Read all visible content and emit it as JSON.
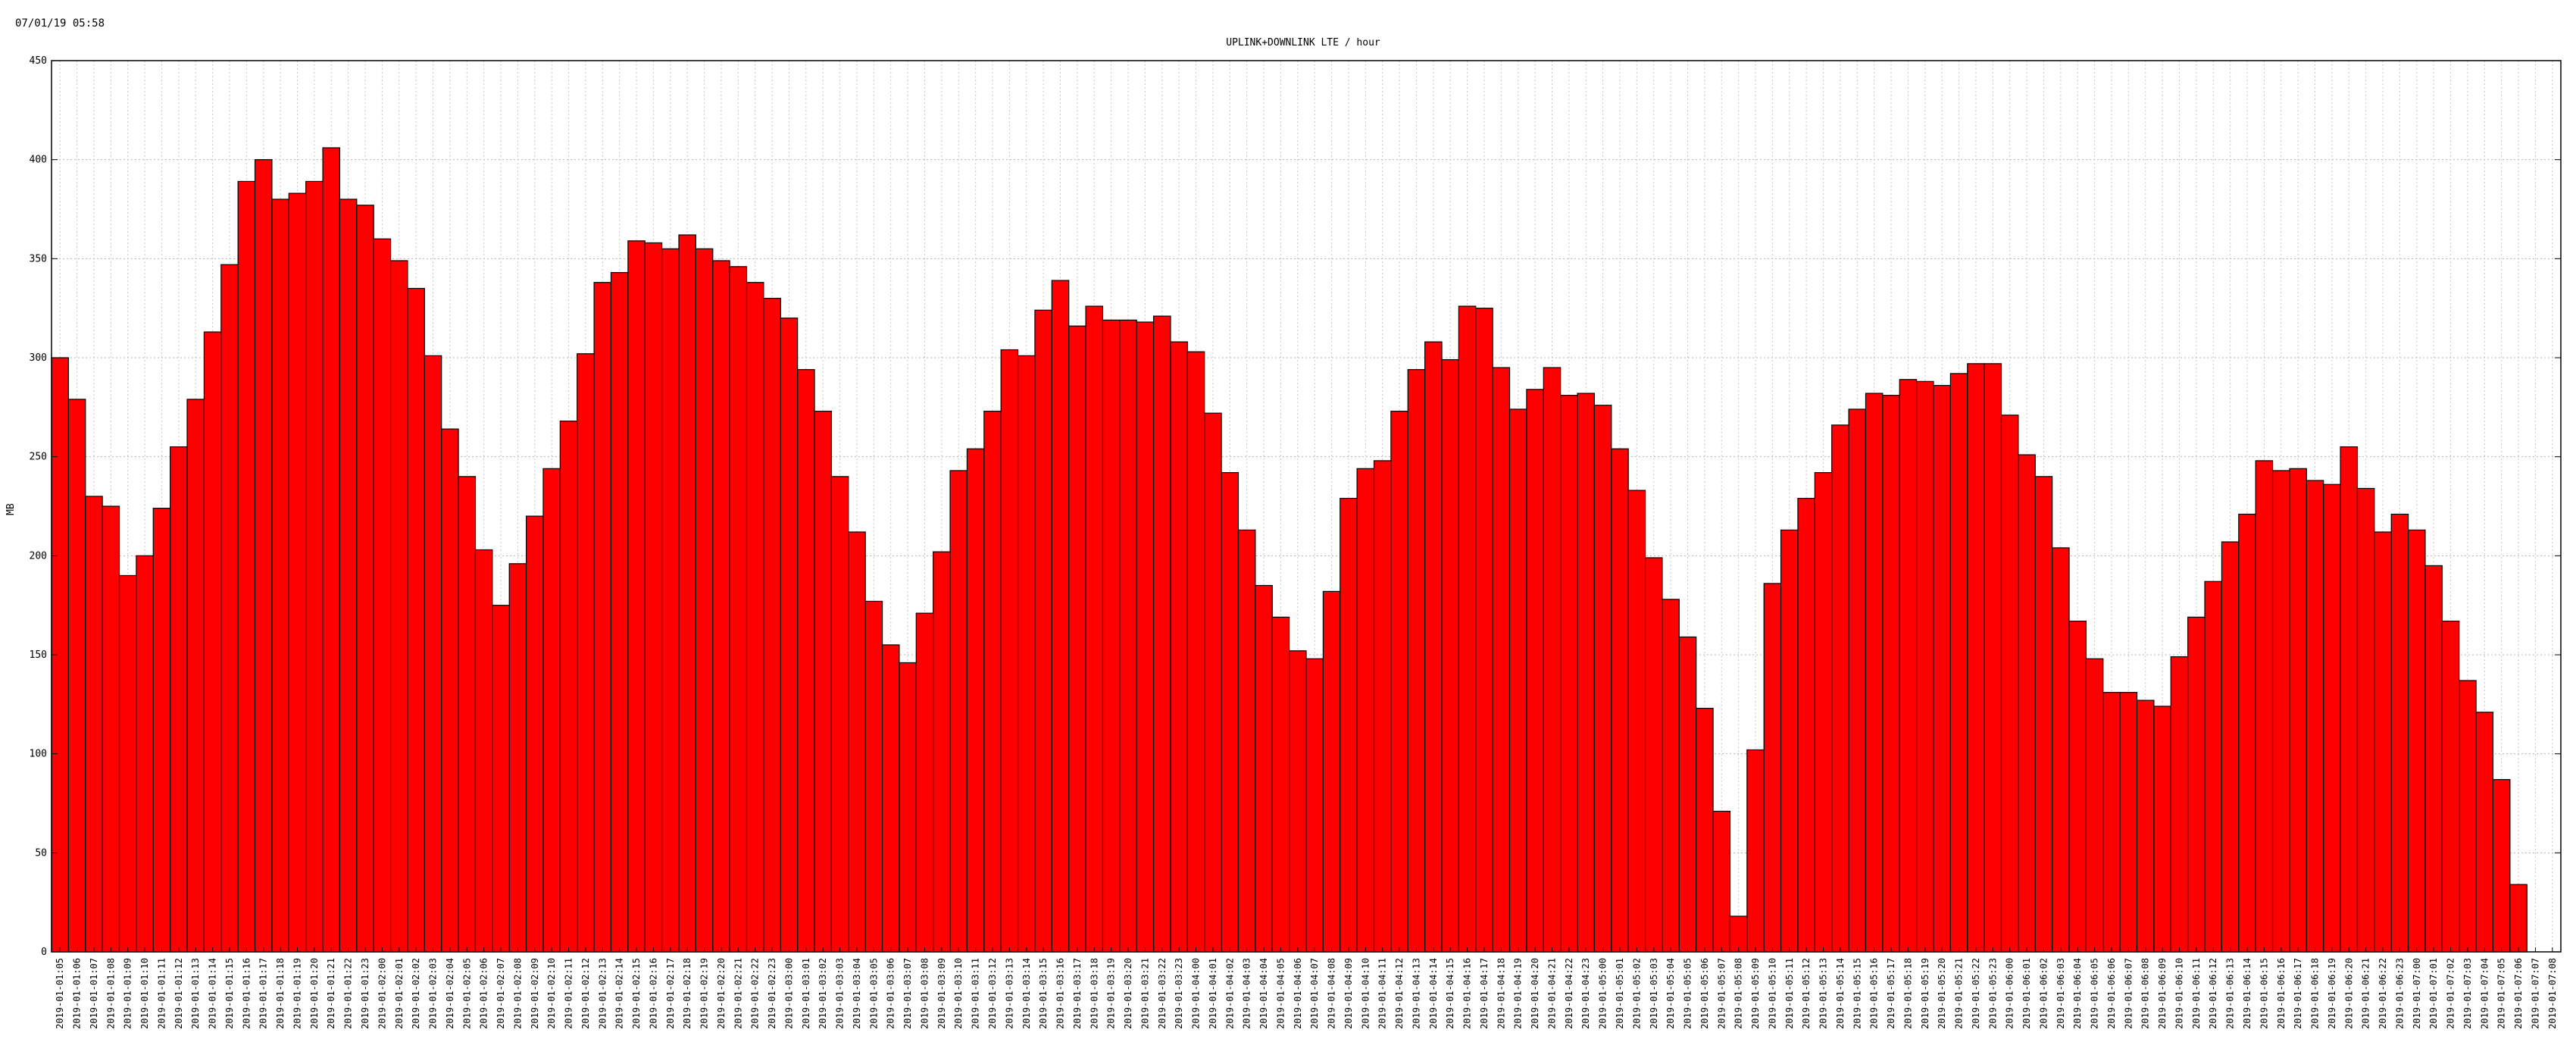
{
  "timestamp": "07/01/19 05:58",
  "chart_data": {
    "type": "bar",
    "title": "UPLINK+DOWNLINK LTE / hour",
    "ylabel": "MB",
    "xlabel": "",
    "ylim": [
      0,
      450
    ],
    "yticks": [
      0,
      50,
      100,
      150,
      200,
      250,
      300,
      350,
      400,
      450
    ],
    "grid": true,
    "bar_color": "#ff0000",
    "bar_edge_color": "#000000",
    "categories": [
      "2019-01-01:05",
      "2019-01-01:06",
      "2019-01-01:07",
      "2019-01-01:08",
      "2019-01-01:09",
      "2019-01-01:10",
      "2019-01-01:11",
      "2019-01-01:12",
      "2019-01-01:13",
      "2019-01-01:14",
      "2019-01-01:15",
      "2019-01-01:16",
      "2019-01-01:17",
      "2019-01-01:18",
      "2019-01-01:19",
      "2019-01-01:20",
      "2019-01-01:21",
      "2019-01-01:22",
      "2019-01-01:23",
      "2019-01-02:00",
      "2019-01-02:01",
      "2019-01-02:02",
      "2019-01-02:03",
      "2019-01-02:04",
      "2019-01-02:05",
      "2019-01-02:06",
      "2019-01-02:07",
      "2019-01-02:08",
      "2019-01-02:09",
      "2019-01-02:10",
      "2019-01-02:11",
      "2019-01-02:12",
      "2019-01-02:13",
      "2019-01-02:14",
      "2019-01-02:15",
      "2019-01-02:16",
      "2019-01-02:17",
      "2019-01-02:18",
      "2019-01-02:19",
      "2019-01-02:20",
      "2019-01-02:21",
      "2019-01-02:22",
      "2019-01-02:23",
      "2019-01-03:00",
      "2019-01-03:01",
      "2019-01-03:02",
      "2019-01-03:03",
      "2019-01-03:04",
      "2019-01-03:05",
      "2019-01-03:06",
      "2019-01-03:07",
      "2019-01-03:08",
      "2019-01-03:09",
      "2019-01-03:10",
      "2019-01-03:11",
      "2019-01-03:12",
      "2019-01-03:13",
      "2019-01-03:14",
      "2019-01-03:15",
      "2019-01-03:16",
      "2019-01-03:17",
      "2019-01-03:18",
      "2019-01-03:19",
      "2019-01-03:20",
      "2019-01-03:21",
      "2019-01-03:22",
      "2019-01-03:23",
      "2019-01-04:00",
      "2019-01-04:01",
      "2019-01-04:02",
      "2019-01-04:03",
      "2019-01-04:04",
      "2019-01-04:05",
      "2019-01-04:06",
      "2019-01-04:07",
      "2019-01-04:08",
      "2019-01-04:09",
      "2019-01-04:10",
      "2019-01-04:11",
      "2019-01-04:12",
      "2019-01-04:13",
      "2019-01-04:14",
      "2019-01-04:15",
      "2019-01-04:16",
      "2019-01-04:17",
      "2019-01-04:18",
      "2019-01-04:19",
      "2019-01-04:20",
      "2019-01-04:21",
      "2019-01-04:22",
      "2019-01-04:23",
      "2019-01-05:00",
      "2019-01-05:01",
      "2019-01-05:02",
      "2019-01-05:03",
      "2019-01-05:04",
      "2019-01-05:05",
      "2019-01-05:06",
      "2019-01-05:07",
      "2019-01-05:08",
      "2019-01-05:09",
      "2019-01-05:10",
      "2019-01-05:11",
      "2019-01-05:12",
      "2019-01-05:13",
      "2019-01-05:14",
      "2019-01-05:15",
      "2019-01-05:16",
      "2019-01-05:17",
      "2019-01-05:18",
      "2019-01-05:19",
      "2019-01-05:20",
      "2019-01-05:21",
      "2019-01-05:22",
      "2019-01-05:23",
      "2019-01-06:00",
      "2019-01-06:01",
      "2019-01-06:02",
      "2019-01-06:03",
      "2019-01-06:04",
      "2019-01-06:05",
      "2019-01-06:06",
      "2019-01-06:07",
      "2019-01-06:08",
      "2019-01-06:09",
      "2019-01-06:10",
      "2019-01-06:11",
      "2019-01-06:12",
      "2019-01-06:13",
      "2019-01-06:14",
      "2019-01-06:15",
      "2019-01-06:16",
      "2019-01-06:17",
      "2019-01-06:18",
      "2019-01-06:19",
      "2019-01-06:20",
      "2019-01-06:21",
      "2019-01-06:22",
      "2019-01-06:23",
      "2019-01-07:00",
      "2019-01-07:01",
      "2019-01-07:02",
      "2019-01-07:03",
      "2019-01-07:04",
      "2019-01-07:05",
      "2019-01-07:06",
      "2019-01-07:07",
      "2019-01-07:08"
    ],
    "values": [
      300,
      279,
      230,
      225,
      190,
      200,
      224,
      255,
      279,
      313,
      347,
      389,
      400,
      380,
      383,
      389,
      406,
      380,
      377,
      360,
      349,
      335,
      301,
      264,
      240,
      203,
      175,
      196,
      220,
      244,
      268,
      302,
      338,
      343,
      359,
      358,
      355,
      362,
      355,
      349,
      346,
      338,
      330,
      320,
      294,
      273,
      240,
      212,
      177,
      155,
      146,
      171,
      202,
      243,
      254,
      273,
      304,
      301,
      324,
      339,
      316,
      326,
      319,
      319,
      318,
      321,
      308,
      303,
      272,
      242,
      213,
      185,
      169,
      152,
      148,
      182,
      229,
      244,
      248,
      273,
      294,
      308,
      299,
      326,
      325,
      295,
      274,
      284,
      295,
      281,
      282,
      276,
      254,
      233,
      199,
      178,
      159,
      123,
      71,
      18,
      102,
      186,
      213,
      229,
      242,
      266,
      274,
      282,
      281,
      289,
      288,
      286,
      292,
      297,
      297,
      271,
      251,
      240,
      204,
      167,
      148,
      131,
      131,
      127,
      124,
      149,
      169,
      187,
      207,
      221,
      248,
      243,
      244,
      238,
      236,
      255,
      234,
      212,
      221,
      213,
      195,
      167,
      137,
      121,
      87,
      34,
      0,
      0
    ]
  }
}
